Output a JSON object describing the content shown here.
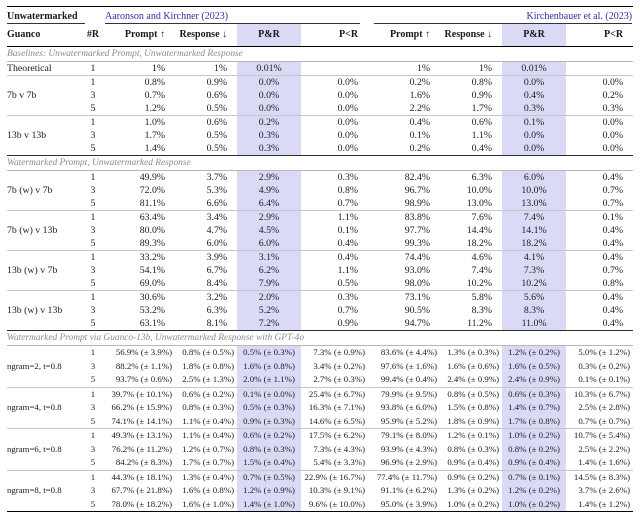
{
  "colors": {
    "highlight": "#dadaf7",
    "citation": "#2f2fa8"
  },
  "header": {
    "col1_line1": "Unwatermarked",
    "col1_line2": "Guanco",
    "num_col": "#R",
    "methods": [
      {
        "citation": "Aaronson and Kirchner (2023)"
      },
      {
        "citation": "Kirchenbauer et al. (2023)"
      }
    ],
    "metric_cols": [
      "Prompt ↑",
      "Response ↓",
      "P&R",
      "P<R"
    ]
  },
  "sections": [
    {
      "title": "Baselines: Unwatermarked Prompt, Unwatermarked Response",
      "small": false,
      "groups": [
        {
          "label": "Theoretical",
          "rows": [
            {
              "r": "1",
              "cells": [
                "1%",
                "1%",
                "0.01%",
                "",
                "1%",
                "1%",
                "0.01%",
                ""
              ]
            }
          ]
        },
        {
          "label": "7b v 7b",
          "rows": [
            {
              "r": "1",
              "cells": [
                "0.8%",
                "0.9%",
                "0.0%",
                "0.0%",
                "0.2%",
                "0.8%",
                "0.0%",
                "0.0%"
              ]
            },
            {
              "r": "3",
              "cells": [
                "0.7%",
                "0.6%",
                "0.0%",
                "0.0%",
                "1.6%",
                "0.9%",
                "0.4%",
                "0.2%"
              ]
            },
            {
              "r": "5",
              "cells": [
                "1.2%",
                "0.5%",
                "0.0%",
                "0.0%",
                "2.2%",
                "1.7%",
                "0.3%",
                "0.3%"
              ]
            }
          ]
        },
        {
          "label": "13b v 13b",
          "rows": [
            {
              "r": "1",
              "cells": [
                "1.0%",
                "0.6%",
                "0.2%",
                "0.0%",
                "0.4%",
                "0.6%",
                "0.1%",
                "0.0%"
              ]
            },
            {
              "r": "3",
              "cells": [
                "1.7%",
                "0.5%",
                "0.3%",
                "0.0%",
                "0.1%",
                "1.1%",
                "0.0%",
                "0.0%"
              ]
            },
            {
              "r": "5",
              "cells": [
                "1.4%",
                "0.5%",
                "0.3%",
                "0.0%",
                "0.2%",
                "0.4%",
                "0.0%",
                "0.0%"
              ]
            }
          ]
        }
      ]
    },
    {
      "title": "Watermarked Prompt, Unwatermarked Response",
      "small": false,
      "groups": [
        {
          "label": "7b (w) v 7b",
          "rows": [
            {
              "r": "1",
              "cells": [
                "49.9%",
                "3.7%",
                "2.9%",
                "0.3%",
                "82.4%",
                "6.3%",
                "6.0%",
                "0.4%"
              ]
            },
            {
              "r": "3",
              "cells": [
                "72.0%",
                "5.3%",
                "4.9%",
                "0.8%",
                "96.7%",
                "10.0%",
                "10.0%",
                "0.7%"
              ]
            },
            {
              "r": "5",
              "cells": [
                "81.1%",
                "6.6%",
                "6.4%",
                "0.7%",
                "98.9%",
                "13.0%",
                "13.0%",
                "0.7%"
              ]
            }
          ]
        },
        {
          "label": "7b (w) v 13b",
          "rows": [
            {
              "r": "1",
              "cells": [
                "63.4%",
                "3.4%",
                "2.9%",
                "1.1%",
                "83.8%",
                "7.6%",
                "7.4%",
                "0.1%"
              ]
            },
            {
              "r": "3",
              "cells": [
                "80.0%",
                "4.7%",
                "4.5%",
                "0.1%",
                "97.7%",
                "14.4%",
                "14.1%",
                "0.4%"
              ]
            },
            {
              "r": "5",
              "cells": [
                "89.3%",
                "6.0%",
                "6.0%",
                "0.4%",
                "99.3%",
                "18.2%",
                "18.2%",
                "0.4%"
              ]
            }
          ]
        },
        {
          "label": "13b (w) v 7b",
          "rows": [
            {
              "r": "1",
              "cells": [
                "33.2%",
                "3.9%",
                "3.1%",
                "0.4%",
                "74.4%",
                "4.6%",
                "4.1%",
                "0.4%"
              ]
            },
            {
              "r": "3",
              "cells": [
                "54.1%",
                "6.7%",
                "6.2%",
                "1.1%",
                "93.0%",
                "7.4%",
                "7.3%",
                "0.7%"
              ]
            },
            {
              "r": "5",
              "cells": [
                "69.0%",
                "8.4%",
                "7.9%",
                "0.5%",
                "98.0%",
                "10.2%",
                "10.2%",
                "0.8%"
              ]
            }
          ]
        },
        {
          "label": "13b (w) v 13b",
          "rows": [
            {
              "r": "1",
              "cells": [
                "30.6%",
                "3.2%",
                "2.0%",
                "0.3%",
                "73.1%",
                "5.8%",
                "5.6%",
                "0.4%"
              ]
            },
            {
              "r": "3",
              "cells": [
                "53.2%",
                "6.3%",
                "5.2%",
                "0.7%",
                "90.5%",
                "8.3%",
                "8.3%",
                "0.4%"
              ]
            },
            {
              "r": "5",
              "cells": [
                "63.1%",
                "8.1%",
                "7.2%",
                "0.9%",
                "94.7%",
                "11.2%",
                "11.0%",
                "0.4%"
              ]
            }
          ]
        }
      ]
    },
    {
      "title": "Watermarked Prompt via Guanco-13b, Unwatermarked Response with GPT-4o",
      "small": true,
      "groups": [
        {
          "label": "ngram=2, t=0.8",
          "rows": [
            {
              "r": "1",
              "cells": [
                "56.9% (± 3.9%)",
                "0.8% (± 0.5%)",
                "0.5% (± 0.3%)",
                "7.3% (± 0.9%)",
                "83.6% (± 4.4%)",
                "1.3% (± 0.3%)",
                "1.2% (± 0.2%)",
                "5.0% (± 1.2%)"
              ]
            },
            {
              "r": "3",
              "cells": [
                "88.2% (± 1.1%)",
                "1.8% (± 0.8%)",
                "1.6% (± 0.8%)",
                "3.4% (± 0.2%)",
                "97.6% (± 1.6%)",
                "1.6% (± 0.6%)",
                "1.6% (± 0.5%)",
                "0.3% (± 0.2%)"
              ]
            },
            {
              "r": "5",
              "cells": [
                "93.7% (± 0.6%)",
                "2.5% (± 1.3%)",
                "2.0% (± 1.1%)",
                "2.7% (± 0.3%)",
                "99.4% (± 0.4%)",
                "2.4% (± 0.9%)",
                "2.4% (± 0.9%)",
                "0.1% (± 0.1%)"
              ]
            }
          ]
        },
        {
          "label": "ngram=4, t=0.8",
          "rows": [
            {
              "r": "1",
              "cells": [
                "39.7% (± 10.1%)",
                "0.6% (± 0.2%)",
                "0.1% (± 0.0%)",
                "25.4% (± 6.7%)",
                "79.9% (± 9.5%)",
                "0.8% (± 0.5%)",
                "0.6% (± 0.3%)",
                "10.3% (± 6.7%)"
              ]
            },
            {
              "r": "3",
              "cells": [
                "66.2% (± 15.9%)",
                "0.8% (± 0.3%)",
                "0.5% (± 0.3%)",
                "16.3% (± 7.1%)",
                "93.8% (± 6.0%)",
                "1.5% (± 0.8%)",
                "1.4% (± 0.7%)",
                "2.5% (± 2.8%)"
              ]
            },
            {
              "r": "5",
              "cells": [
                "74.1% (± 14.1%)",
                "1.1% (± 0.4%)",
                "0.9% (± 0.3%)",
                "14.6% (± 6.5%)",
                "95.9% (± 5.2%)",
                "1.8% (± 0.9%)",
                "1.7% (± 0.8%)",
                "0.7% (± 0.7%)"
              ]
            }
          ]
        },
        {
          "label": "ngram=6, t=0.8",
          "rows": [
            {
              "r": "1",
              "cells": [
                "49.3% (± 13.1%)",
                "1.1% (± 0.4%)",
                "0.6% (± 0.2%)",
                "17.5% (± 6.2%)",
                "79.1% (± 8.0%)",
                "1.2% (± 0.1%)",
                "1.0% (± 0.2%)",
                "10.7% (± 5.4%)"
              ]
            },
            {
              "r": "3",
              "cells": [
                "76.2% (± 11.2%)",
                "1.2% (± 0.7%)",
                "0.8% (± 0.3%)",
                "7.3% (± 4.3%)",
                "93.9% (± 4.3%)",
                "0.8% (± 0.3%)",
                "0.8% (± 0.2%)",
                "2.5% (± 2.2%)"
              ]
            },
            {
              "r": "5",
              "cells": [
                "84.2% (± 8.3%)",
                "1.7% (± 0.7%)",
                "1.5% (± 0.4%)",
                "5.4% (± 3.3%)",
                "96.9% (± 2.9%)",
                "0.9% (± 0.4%)",
                "0.9% (± 0.4%)",
                "1.4% (± 1.6%)"
              ]
            }
          ]
        },
        {
          "label": "ngram=8, t=0.8",
          "rows": [
            {
              "r": "1",
              "cells": [
                "44.3% (± 18.1%)",
                "1.3% (± 0.4%)",
                "0.7% (± 0.5%)",
                "22.9% (± 16.7%)",
                "77.4% (± 11.7%)",
                "0.9% (± 0.2%)",
                "0.7% (± 0.1%)",
                "14.5% (± 8.3%)"
              ]
            },
            {
              "r": "3",
              "cells": [
                "67.7% (± 21.8%)",
                "1.6% (± 0.8%)",
                "1.2% (± 0.9%)",
                "10.3% (± 9.1%)",
                "91.1% (± 6.2%)",
                "1.3% (± 0.2%)",
                "1.2% (± 0.2%)",
                "3.7% (± 2.6%)"
              ]
            },
            {
              "r": "5",
              "cells": [
                "78.0% (± 18.2%)",
                "1.6% (± 1.0%)",
                "1.4% (± 1.0%)",
                "9.6% (± 10.0%)",
                "95.0% (± 3.9%)",
                "1.0% (± 0.2%)",
                "1.0% (± 0.2%)",
                "1.4% (± 1.2%)"
              ]
            }
          ]
        }
      ]
    }
  ]
}
